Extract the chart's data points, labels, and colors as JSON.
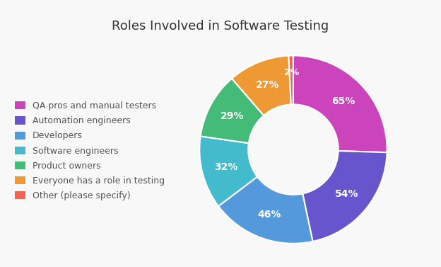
{
  "title": "Roles Involved in Software Testing",
  "labels": [
    "QA pros and manual testers",
    "Automation engineers",
    "Developers",
    "Software engineers",
    "Product owners",
    "Everyone has a role in testing",
    "Other (please specify)"
  ],
  "values": [
    65,
    54,
    46,
    32,
    29,
    27,
    2
  ],
  "display_pcts": [
    "65%",
    "54%",
    "46%",
    "32%",
    "29%",
    "27%",
    "2%"
  ],
  "colors": [
    "#cc44bb",
    "#6655cc",
    "#5599dd",
    "#44bbcc",
    "#44bb77",
    "#ee9933",
    "#ee6655"
  ],
  "header_color": "#e8e8e8",
  "body_color": "#f8f8f8",
  "title_fontsize": 13,
  "legend_fontsize": 9,
  "pct_fontsize": 10,
  "wedge_edge_color": "#ffffff"
}
